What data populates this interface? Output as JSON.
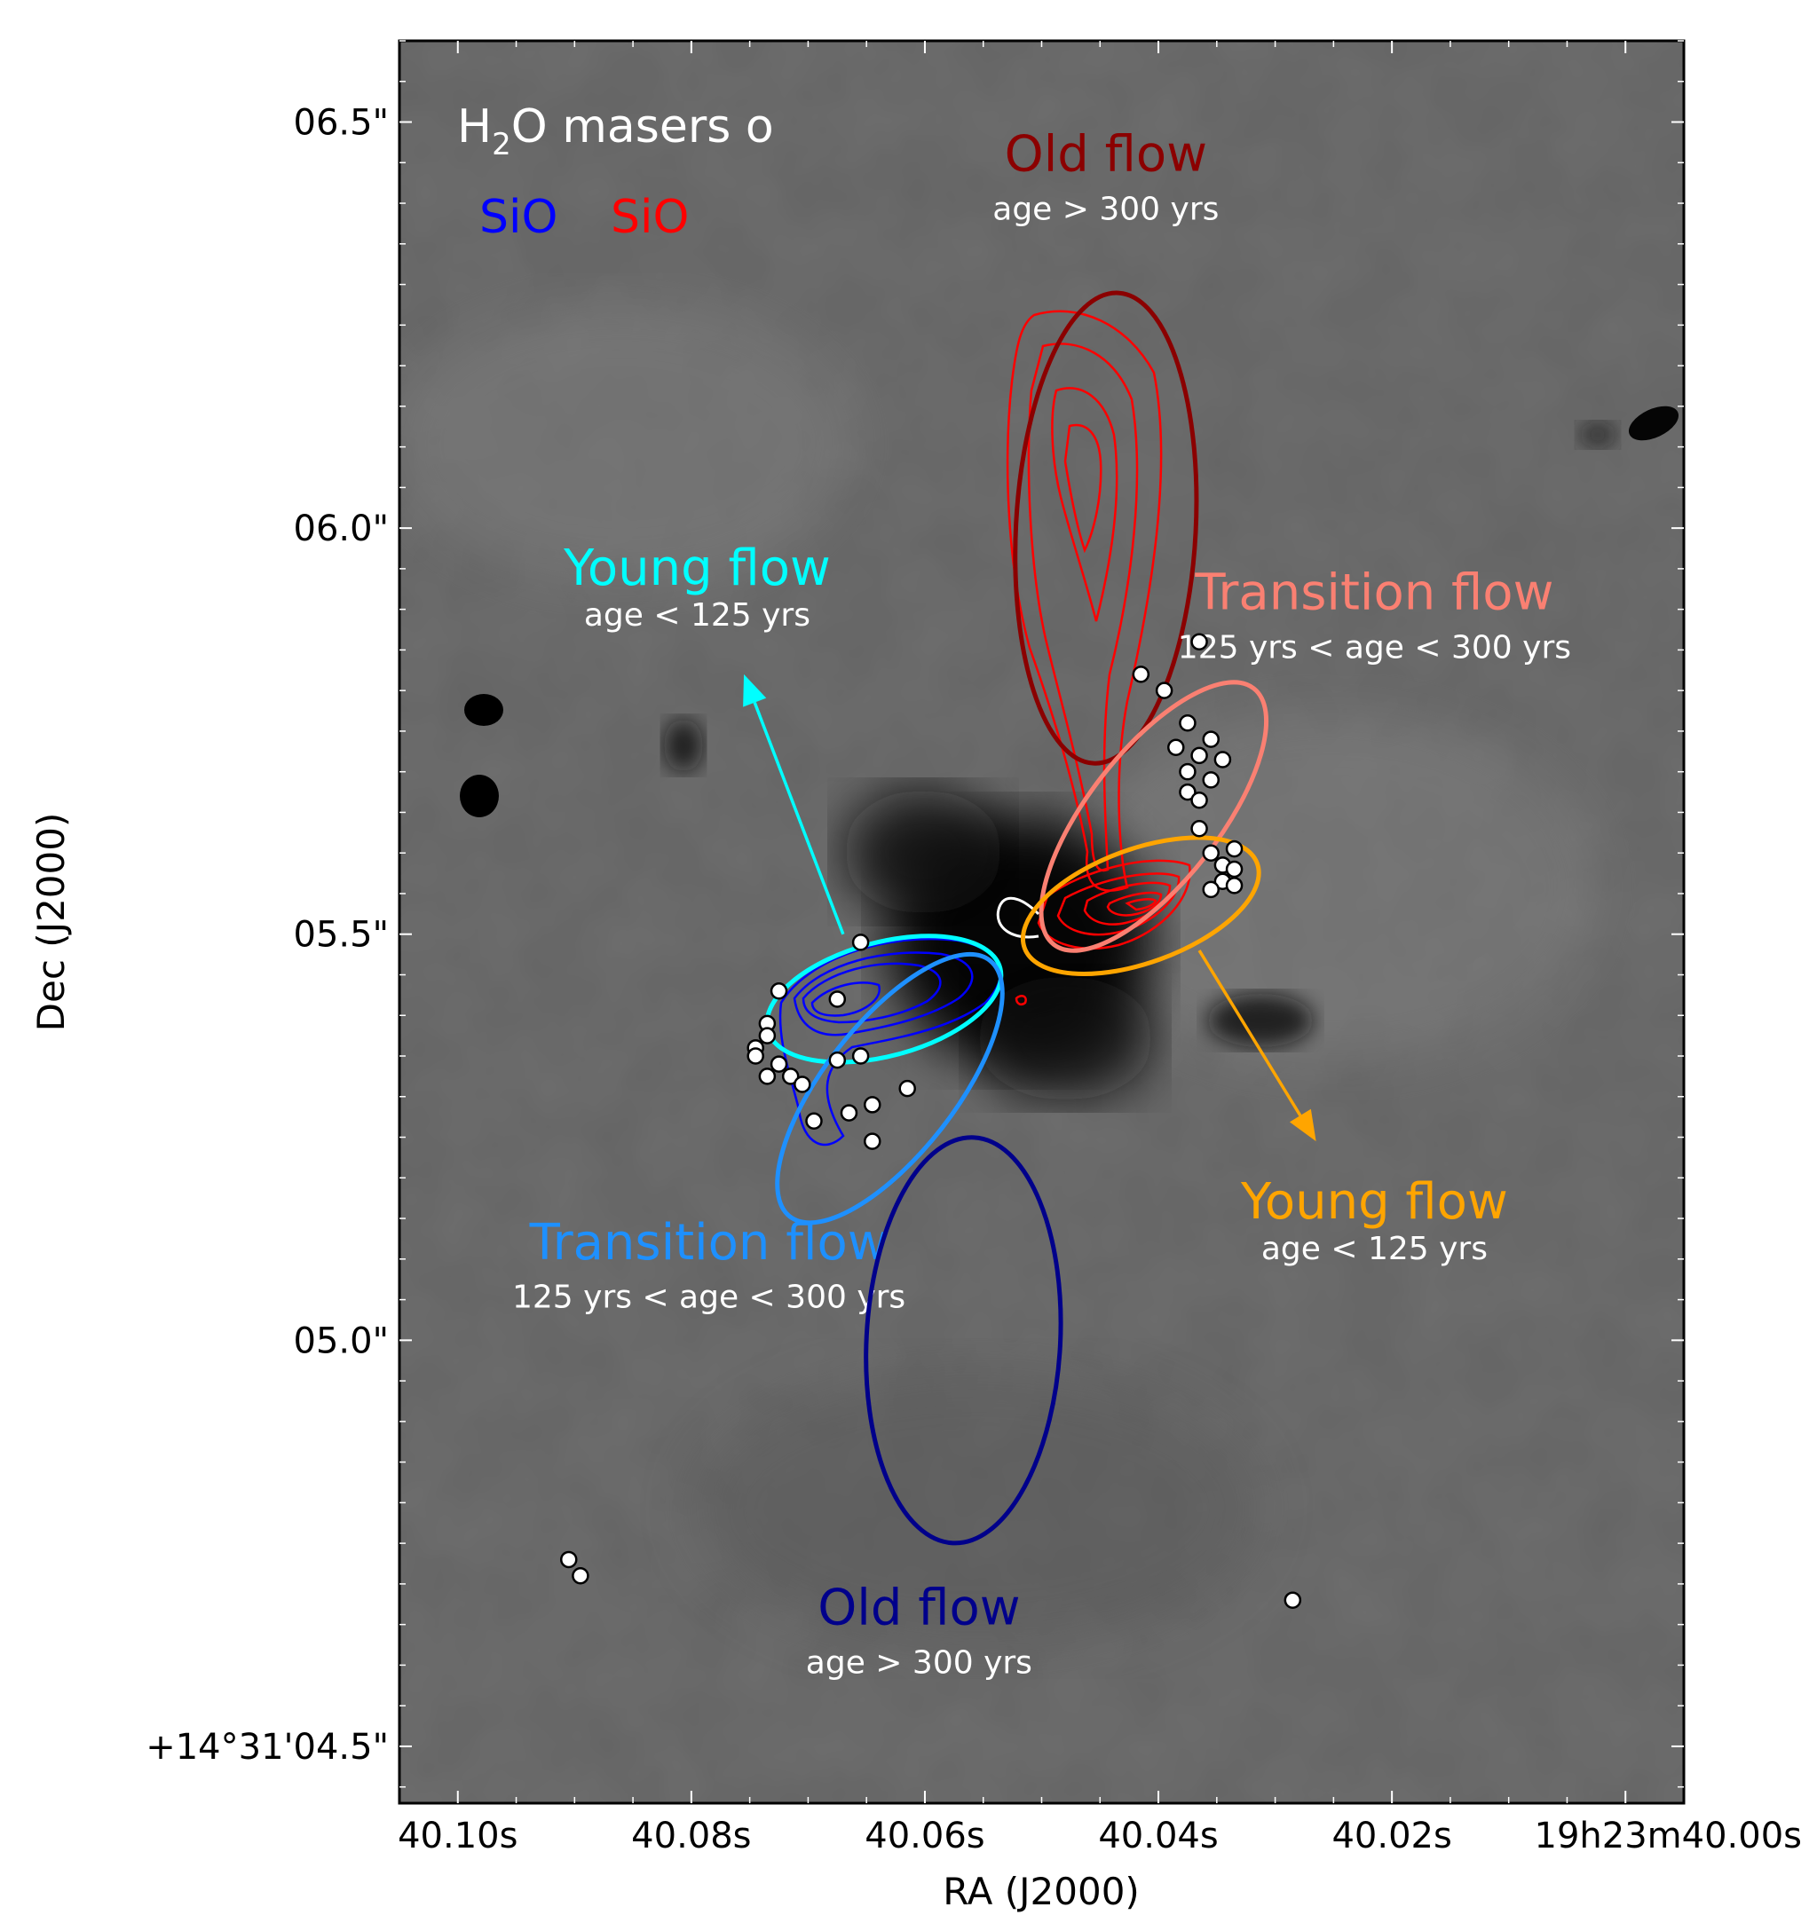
{
  "chart_data": {
    "type": "scatter",
    "xlabel": "RA (J2000)",
    "ylabel": "Dec (J2000)",
    "x_ticks": [
      {
        "v": 40.1,
        "label": "40.10s"
      },
      {
        "v": 40.08,
        "label": "40.08s"
      },
      {
        "v": 40.06,
        "label": "40.06s"
      },
      {
        "v": 40.04,
        "label": "40.04s"
      },
      {
        "v": 40.02,
        "label": "40.02s"
      },
      {
        "v": 40.0,
        "label": "19h23m40.00s"
      }
    ],
    "y_ticks": [
      {
        "v": 6.5,
        "label": "06.5\""
      },
      {
        "v": 6.0,
        "label": "06.0\""
      },
      {
        "v": 5.5,
        "label": "05.5\""
      },
      {
        "v": 5.0,
        "label": "05.0\""
      },
      {
        "v": 4.5,
        "label": "+14°31'04.5\""
      }
    ],
    "xlim": [
      40.105,
      39.995
    ],
    "ylim": [
      4.43,
      6.6
    ],
    "legend": {
      "masers_prefix": "H",
      "masers_sub": "2",
      "masers_suffix": "O masers o",
      "sio_blue": "SiO",
      "sio_red": "SiO",
      "color_blue": "#0000ff",
      "color_red": "#ff0000"
    },
    "masers": [
      {
        "x": 40.0655,
        "y": 5.49
      },
      {
        "x": 40.0675,
        "y": 5.42
      },
      {
        "x": 40.0725,
        "y": 5.43
      },
      {
        "x": 40.0735,
        "y": 5.39
      },
      {
        "x": 40.0735,
        "y": 5.375
      },
      {
        "x": 40.0745,
        "y": 5.36
      },
      {
        "x": 40.0745,
        "y": 5.35
      },
      {
        "x": 40.0725,
        "y": 5.34
      },
      {
        "x": 40.0735,
        "y": 5.325
      },
      {
        "x": 40.0715,
        "y": 5.325
      },
      {
        "x": 40.0705,
        "y": 5.315
      },
      {
        "x": 40.0675,
        "y": 5.345
      },
      {
        "x": 40.0655,
        "y": 5.35
      },
      {
        "x": 40.0645,
        "y": 5.29
      },
      {
        "x": 40.0665,
        "y": 5.28
      },
      {
        "x": 40.0695,
        "y": 5.27
      },
      {
        "x": 40.0615,
        "y": 5.31
      },
      {
        "x": 40.0645,
        "y": 5.245
      },
      {
        "x": 40.0905,
        "y": 4.73
      },
      {
        "x": 40.0895,
        "y": 4.71
      },
      {
        "x": 40.0285,
        "y": 4.68
      },
      {
        "x": 40.0365,
        "y": 5.86
      },
      {
        "x": 40.0415,
        "y": 5.82
      },
      {
        "x": 40.0395,
        "y": 5.8
      },
      {
        "x": 40.0375,
        "y": 5.76
      },
      {
        "x": 40.0355,
        "y": 5.74
      },
      {
        "x": 40.0385,
        "y": 5.73
      },
      {
        "x": 40.0365,
        "y": 5.72
      },
      {
        "x": 40.0345,
        "y": 5.715
      },
      {
        "x": 40.0375,
        "y": 5.7
      },
      {
        "x": 40.0355,
        "y": 5.69
      },
      {
        "x": 40.0375,
        "y": 5.675
      },
      {
        "x": 40.0365,
        "y": 5.665
      },
      {
        "x": 40.0365,
        "y": 5.63
      },
      {
        "x": 40.0355,
        "y": 5.6
      },
      {
        "x": 40.0335,
        "y": 5.605
      },
      {
        "x": 40.0345,
        "y": 5.585
      },
      {
        "x": 40.0335,
        "y": 5.58
      },
      {
        "x": 40.0345,
        "y": 5.565
      },
      {
        "x": 40.0355,
        "y": 5.555
      },
      {
        "x": 40.0335,
        "y": 5.56
      }
    ],
    "flows": [
      {
        "name": "Old flow",
        "age": "age > 300 yrs",
        "color": "#8b0000",
        "label_x": 40.0445,
        "label_y": 6.44,
        "age_y": 6.38,
        "ellipse": {
          "cx": 40.0445,
          "cy": 6.0,
          "rx_ra": 0.0077,
          "ry_dec": 0.29,
          "rot": 3
        }
      },
      {
        "name": "Transition flow",
        "age": "125 yrs < age < 300 yrs",
        "color": "#fa8072",
        "label_x": 40.0215,
        "label_y": 5.9,
        "age_y": 5.84,
        "ellipse": {
          "cx": 40.0404,
          "cy": 5.645,
          "rx_ra": 0.0056,
          "ry_dec": 0.2,
          "rot": 38
        }
      },
      {
        "name": "Young flow",
        "age": "age < 125 yrs",
        "color": "#ffa500",
        "label_x": 40.0215,
        "label_y": 5.15,
        "age_y": 5.1,
        "ellipse": {
          "cx": 40.0415,
          "cy": 5.535,
          "rx_ra": 0.0106,
          "ry_dec": 0.07,
          "rot": -20
        },
        "arrow": {
          "x0": 40.0365,
          "y0": 5.48,
          "x1": 40.0265,
          "y1": 5.245
        }
      },
      {
        "name": "Young flow",
        "age": "age < 125 yrs",
        "color": "#00ffff",
        "label_x": 40.0795,
        "label_y": 5.93,
        "age_y": 5.88,
        "ellipse": {
          "cx": 40.0635,
          "cy": 5.42,
          "rx_ra": 0.0103,
          "ry_dec": 0.07,
          "rot": -15
        },
        "arrow": {
          "x0": 40.067,
          "y0": 5.5,
          "x1": 40.0755,
          "y1": 5.82
        }
      },
      {
        "name": "Transition flow",
        "age": "125 yrs < age < 300 yrs",
        "color": "#1e90ff",
        "label_x": 40.0785,
        "label_y": 5.1,
        "age_y": 5.04,
        "ellipse": {
          "cx": 40.063,
          "cy": 5.31,
          "rx_ra": 0.0056,
          "ry_dec": 0.2,
          "rot": 38
        }
      },
      {
        "name": "Old flow",
        "age": "age > 300 yrs",
        "color": "#00008b",
        "label_x": 40.0605,
        "label_y": 4.65,
        "age_y": 4.59,
        "ellipse": {
          "cx": 40.0567,
          "cy": 5.0,
          "rx_ra": 0.0083,
          "ry_dec": 0.25,
          "rot": 3
        }
      }
    ]
  }
}
